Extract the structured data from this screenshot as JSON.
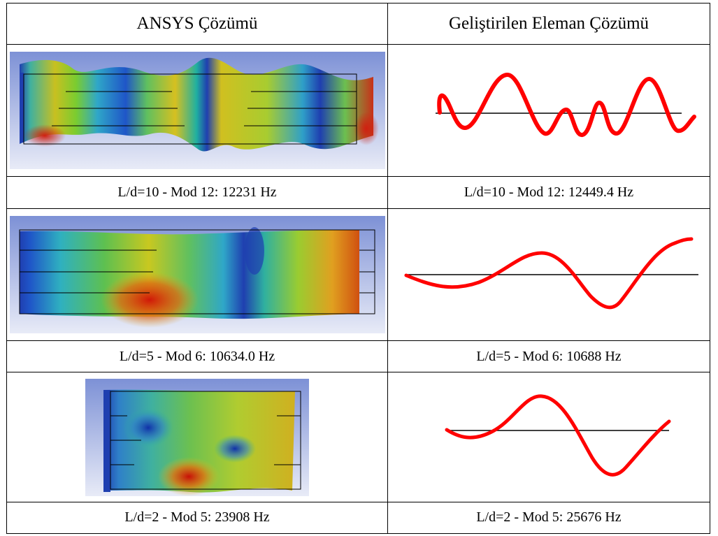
{
  "header": {
    "col1": "ANSYS Çözümü",
    "col2": "Geliştirilen Eleman Çözümü"
  },
  "rows": [
    {
      "ansys_caption": "L/d=10 - Mod 12: 12231 Hz",
      "element_caption": "L/d=10 - Mod 12: 12449.4 Hz",
      "ansys_image": "fem-contour-plot-mode-12",
      "element_image": "red-mode-shape-curve-mode-12"
    },
    {
      "ansys_caption": "L/d=5 - Mod 6: 10634.0 Hz",
      "element_caption": "L/d=5 - Mod 6: 10688 Hz",
      "ansys_image": "fem-contour-plot-mode-6",
      "element_image": "red-mode-shape-curve-mode-6"
    },
    {
      "ansys_caption": "L/d=2 - Mod 5: 23908 Hz",
      "element_caption": "L/d=2 - Mod 5: 25676 Hz",
      "ansys_image": "fem-contour-plot-mode-5",
      "element_image": "red-mode-shape-curve-mode-5"
    }
  ],
  "colors": {
    "mode_curve": "#ff0000",
    "axis_line": "#000000",
    "ansys_background_top": "#7f93d8",
    "ansys_background_bottom": "#e6e9f6"
  }
}
